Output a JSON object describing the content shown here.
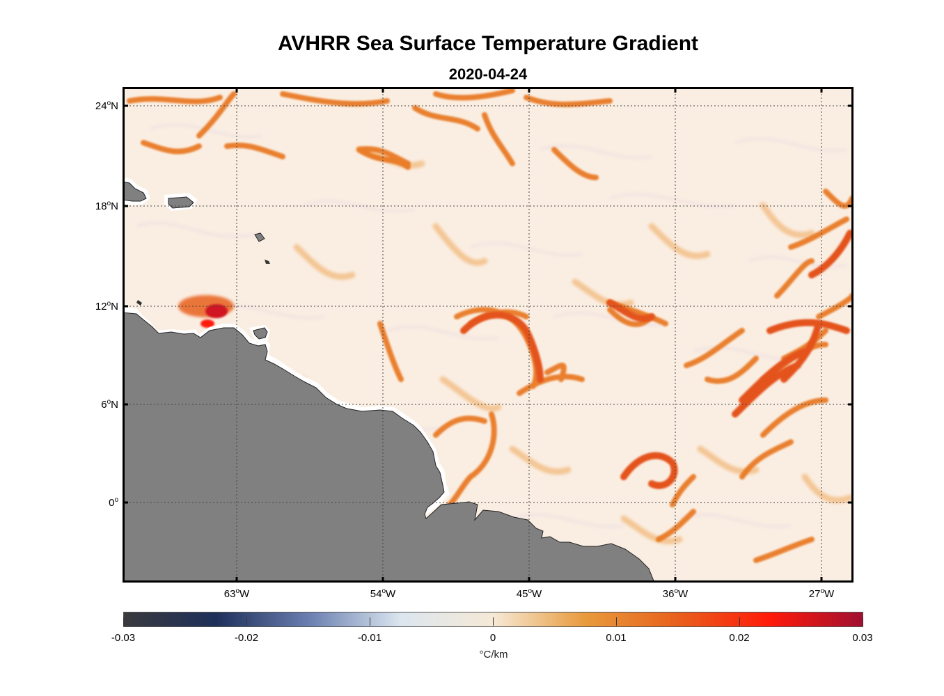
{
  "title": "AVHRR Sea Surface Temperature Gradient",
  "subtitle": "2020-04-24",
  "lat_labels": [
    {
      "text": "24",
      "hem": "N",
      "value": 24
    },
    {
      "text": "18",
      "hem": "N",
      "value": 18
    },
    {
      "text": "12",
      "hem": "N",
      "value": 12
    },
    {
      "text": "6",
      "hem": "N",
      "value": 6
    },
    {
      "text": "0",
      "hem": "",
      "value": 0
    }
  ],
  "lon_labels": [
    {
      "text": "63",
      "hem": "W",
      "value": -63
    },
    {
      "text": "54",
      "hem": "W",
      "value": -54
    },
    {
      "text": "45",
      "hem": "W",
      "value": -45
    },
    {
      "text": "36",
      "hem": "W",
      "value": -36
    },
    {
      "text": "27",
      "hem": "W",
      "value": -27
    }
  ],
  "colorbar": {
    "ticks": [
      "-0.03",
      "-0.02",
      "-0.01",
      "0",
      "0.01",
      "0.02",
      "0.03"
    ],
    "unit": "°C/km",
    "colors": [
      "#3a3a3e",
      "#1e2f5a",
      "#6a7fb0",
      "#dce6ef",
      "#f6e9d6",
      "#e89a3c",
      "#e8601c",
      "#ff1a0a",
      "#a01030"
    ]
  },
  "colors": {
    "ocean": "#faeee2",
    "land": "#808080",
    "coast_halo": "#ffffff",
    "front_weak": "#f3c18c",
    "front_medium": "#e8741f",
    "front_strong": "#d8241a"
  }
}
